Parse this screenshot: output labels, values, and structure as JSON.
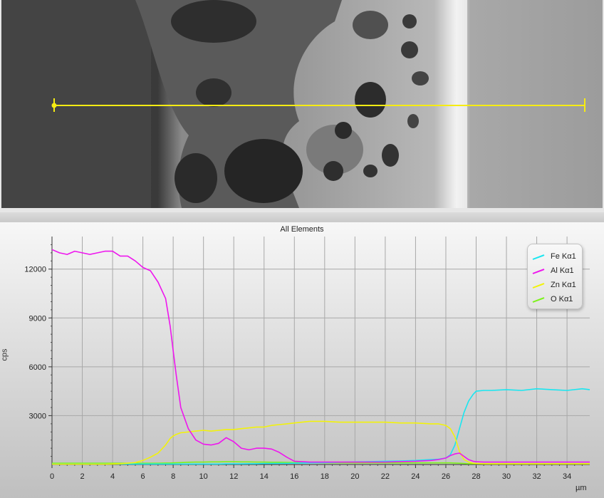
{
  "colors": {
    "Fe": "#19e6f0",
    "Al": "#ee16ee",
    "Zn": "#f2f20a",
    "O": "#7cf21a",
    "scan_line": "#f6ec12"
  },
  "chart_data": {
    "type": "line",
    "title": "All Elements",
    "xlabel": "µm",
    "ylabel": "cps",
    "xlim": [
      0,
      35.5
    ],
    "ylim": [
      0,
      14000
    ],
    "grid": true,
    "legend_position": "top-right",
    "x_ticks": [
      0,
      2,
      4,
      6,
      8,
      10,
      12,
      14,
      16,
      18,
      20,
      22,
      24,
      26,
      28,
      30,
      32,
      34
    ],
    "x_tick_labels": [
      "0",
      "2",
      "4",
      "6",
      "8",
      "10",
      "12",
      "14",
      "16",
      "18",
      "20",
      "22",
      "24",
      "26",
      "28",
      "30",
      "32",
      "34"
    ],
    "y_ticks": [
      3000,
      6000,
      9000,
      12000
    ],
    "y_tick_labels": [
      "3000",
      "6000",
      "9000",
      "12000"
    ],
    "x": [
      0,
      0.5,
      1,
      1.5,
      2,
      2.5,
      3,
      3.5,
      4,
      4.5,
      5,
      5.5,
      6,
      6.5,
      7,
      7.5,
      7.8,
      8,
      8.2,
      8.5,
      9,
      9.5,
      10,
      10.5,
      11,
      11.5,
      12,
      12.5,
      13,
      13.5,
      14,
      14.5,
      15,
      15.5,
      16,
      17,
      18,
      19,
      20,
      21,
      22,
      23,
      24,
      25,
      25.5,
      26,
      26.3,
      26.6,
      26.9,
      27.2,
      27.5,
      27.8,
      28,
      28.5,
      29,
      30,
      31,
      32,
      33,
      34,
      35,
      35.5
    ],
    "series": [
      {
        "name": "Fe Kα1",
        "color": "#19e6f0",
        "values": [
          30,
          30,
          30,
          30,
          30,
          30,
          30,
          30,
          30,
          30,
          30,
          30,
          30,
          30,
          30,
          30,
          30,
          30,
          30,
          30,
          30,
          30,
          30,
          30,
          30,
          40,
          40,
          40,
          50,
          50,
          60,
          60,
          70,
          70,
          80,
          100,
          120,
          140,
          160,
          180,
          200,
          220,
          250,
          300,
          330,
          400,
          600,
          1200,
          2200,
          3200,
          3900,
          4300,
          4500,
          4550,
          4550,
          4600,
          4550,
          4650,
          4600,
          4550,
          4650,
          4600
        ]
      },
      {
        "name": "Al Kα1",
        "color": "#ee16ee",
        "values": [
          13200,
          13000,
          12900,
          13100,
          13000,
          12900,
          13000,
          13100,
          13100,
          12800,
          12800,
          12500,
          12100,
          11900,
          11200,
          10200,
          8500,
          7000,
          5500,
          3500,
          2200,
          1500,
          1250,
          1200,
          1300,
          1650,
          1400,
          1000,
          900,
          1000,
          1000,
          950,
          750,
          450,
          200,
          150,
          150,
          150,
          150,
          150,
          150,
          180,
          200,
          250,
          300,
          400,
          550,
          650,
          700,
          500,
          300,
          200,
          170,
          150,
          150,
          150,
          150,
          150,
          150,
          150,
          150,
          150
        ]
      },
      {
        "name": "Zn Kα1",
        "color": "#f2f20a",
        "values": [
          20,
          20,
          20,
          20,
          20,
          20,
          20,
          20,
          30,
          50,
          80,
          120,
          250,
          450,
          700,
          1200,
          1600,
          1750,
          1850,
          1950,
          2000,
          2050,
          2100,
          2050,
          2100,
          2150,
          2150,
          2200,
          2250,
          2300,
          2300,
          2400,
          2450,
          2500,
          2550,
          2650,
          2650,
          2600,
          2600,
          2600,
          2600,
          2550,
          2550,
          2500,
          2500,
          2400,
          2200,
          1700,
          800,
          300,
          150,
          80,
          60,
          50,
          40,
          40,
          40,
          40,
          40,
          40,
          40,
          40
        ]
      },
      {
        "name": "O Kα1",
        "color": "#7cf21a",
        "values": [
          80,
          80,
          80,
          80,
          80,
          80,
          80,
          80,
          80,
          80,
          80,
          80,
          80,
          80,
          80,
          90,
          90,
          100,
          110,
          120,
          140,
          150,
          150,
          160,
          160,
          170,
          170,
          160,
          160,
          150,
          150,
          140,
          140,
          130,
          120,
          110,
          100,
          100,
          100,
          100,
          100,
          100,
          100,
          100,
          100,
          100,
          100,
          90,
          80,
          60,
          50,
          50,
          50,
          50,
          50,
          50,
          50,
          50,
          50,
          50,
          50,
          50
        ]
      }
    ]
  }
}
